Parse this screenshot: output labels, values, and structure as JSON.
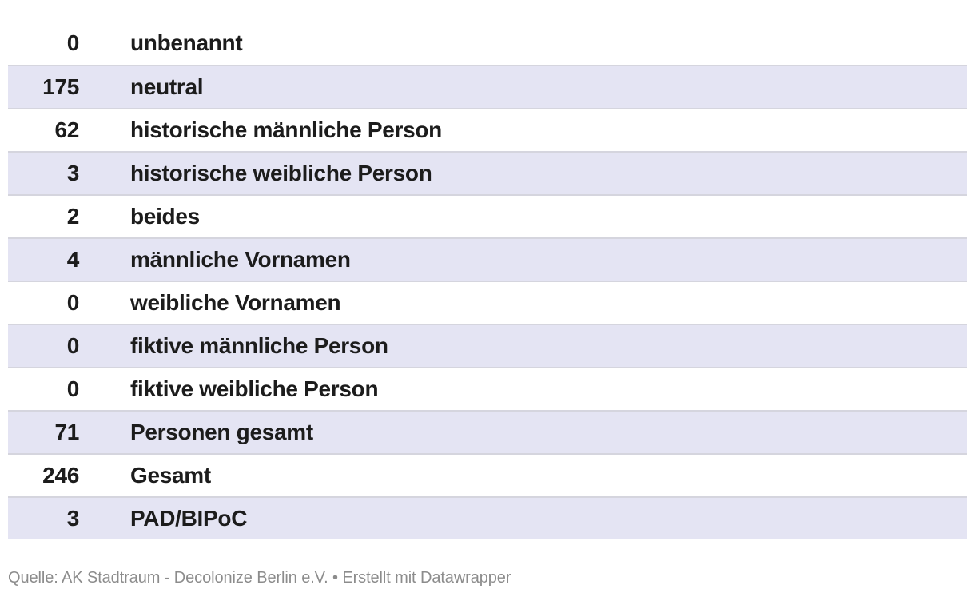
{
  "chart_data": {
    "type": "table",
    "categories": [
      "unbenannt",
      "neutral",
      "historische männliche Person",
      "historische weibliche Person",
      "beides",
      "männliche Vornamen",
      "weibliche Vornamen",
      "fiktive männliche Person",
      "fiktive weibliche Person",
      "Personen gesamt",
      "Gesamt",
      "PAD/BIPoC"
    ],
    "values": [
      0,
      175,
      62,
      3,
      2,
      4,
      0,
      0,
      0,
      71,
      246,
      3
    ],
    "rows": [
      {
        "value": "0",
        "label": "unbenannt"
      },
      {
        "value": "175",
        "label": "neutral"
      },
      {
        "value": "62",
        "label": "historische männliche Person"
      },
      {
        "value": "3",
        "label": "historische weibliche Person"
      },
      {
        "value": "2",
        "label": "beides"
      },
      {
        "value": "4",
        "label": "männliche Vornamen"
      },
      {
        "value": "0",
        "label": "weibliche Vornamen"
      },
      {
        "value": "0",
        "label": "fiktive männliche Person"
      },
      {
        "value": "0",
        "label": "fiktive weibliche Person"
      },
      {
        "value": "71",
        "label": "Personen gesamt"
      },
      {
        "value": "246",
        "label": "Gesamt"
      },
      {
        "value": "3",
        "label": "PAD/BIPoC"
      }
    ],
    "title": "",
    "source": "AK Stadtraum - Decolonize Berlin e.V.",
    "legend_position": "none",
    "grid": false
  },
  "footer": {
    "quelle_label": "Quelle: ",
    "source": "AK Stadtraum - Decolonize Berlin e.V.",
    "separator": " • ",
    "credit_prefix": "Erstellt mit ",
    "credit_link": "Datawrapper"
  },
  "colors": {
    "stripe_background": "#e4e4f3",
    "row_border": "#d5d5de",
    "cell_text": "#1c1c1c",
    "footer_text": "#8c8c8c",
    "page_background": "#ffffff"
  }
}
